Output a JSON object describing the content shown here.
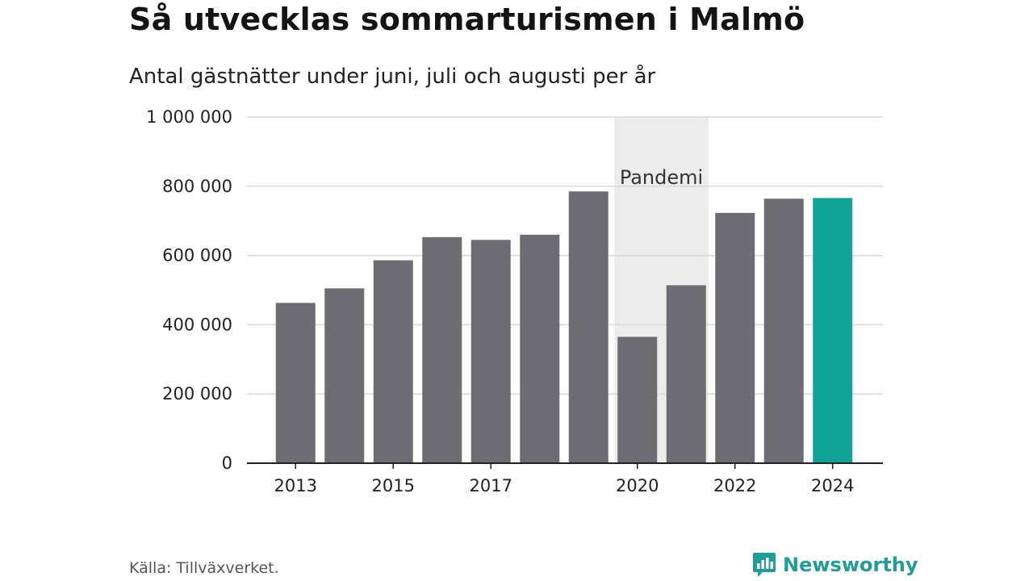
{
  "title": "Så utvecklas sommarturismen i Malmö",
  "subtitle": "Antal gästnätter under juni, juli och augusti per år",
  "source": "Källa: Tillväxverket.",
  "brand": {
    "name": "Newsworthy",
    "icon": "newsworthy-logo-icon"
  },
  "colors": {
    "bar": "#6d6c72",
    "highlight": "#0fa297",
    "band": "#ececec",
    "grid": "#d9d9d9",
    "axis": "#222222",
    "brand": "#1f9e96"
  },
  "chart_data": {
    "type": "bar",
    "title": "Så utvecklas sommarturismen i Malmö",
    "subtitle": "Antal gästnätter under juni, juli och augusti per år",
    "xlabel": "",
    "ylabel": "",
    "categories": [
      2013,
      2014,
      2015,
      2016,
      2017,
      2018,
      2019,
      2020,
      2021,
      2022,
      2023,
      2024
    ],
    "values": [
      463000,
      505000,
      586000,
      653000,
      645000,
      660000,
      785000,
      365000,
      514000,
      723000,
      764000,
      766000
    ],
    "highlight_category": 2024,
    "ylim": [
      0,
      1000000
    ],
    "yticks": [
      0,
      200000,
      400000,
      600000,
      800000,
      1000000
    ],
    "ytick_labels": [
      "0",
      "200 000",
      "400 000",
      "600 000",
      "800 000",
      "1 000 000"
    ],
    "xtick_labels": [
      "2013",
      "2015",
      "2017",
      "2020",
      "2022",
      "2024"
    ],
    "xticks": [
      2013,
      2015,
      2017,
      2020,
      2022,
      2024
    ],
    "grid": true,
    "legend": "none",
    "annotations": [
      {
        "type": "band",
        "from": 2020,
        "to": 2021,
        "label": "Pandemi"
      }
    ]
  }
}
